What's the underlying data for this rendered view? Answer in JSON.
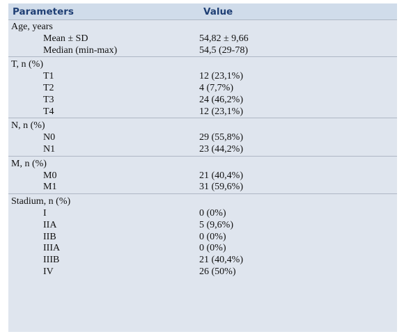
{
  "table": {
    "headers": {
      "parameter": "Parameters",
      "value": "Value"
    },
    "sections": [
      {
        "title": "Age, years",
        "rows": [
          {
            "label": "Mean ± SD",
            "value": "54,82 ± 9,66"
          },
          {
            "label": "Median (min-max)",
            "value": "54,5 (29-78)"
          }
        ]
      },
      {
        "title": "T, n (%)",
        "rows": [
          {
            "label": "T1",
            "value": "12 (23,1%)"
          },
          {
            "label": "T2",
            "value": "4 (7,7%)"
          },
          {
            "label": "T3",
            "value": "24 (46,2%)"
          },
          {
            "label": "T4",
            "value": "12 (23,1%)"
          }
        ]
      },
      {
        "title": "N, n (%)",
        "rows": [
          {
            "label": "N0",
            "value": "29 (55,8%)"
          },
          {
            "label": "N1",
            "value": "23 (44,2%)"
          }
        ]
      },
      {
        "title": "M, n (%)",
        "rows": [
          {
            "label": "M0",
            "value": "21 (40,4%)"
          },
          {
            "label": "M1",
            "value": "31 (59,6%)"
          }
        ]
      },
      {
        "title": "Stadium, n (%)",
        "rows": [
          {
            "label": "I",
            "value": "0 (0%)"
          },
          {
            "label": "IIA",
            "value": "5 (9,6%)"
          },
          {
            "label": "IIB",
            "value": "0 (0%)"
          },
          {
            "label": "IIIA",
            "value": "0 (0%)"
          },
          {
            "label": "IIIB",
            "value": "21 (40,4%)"
          },
          {
            "label": "IV",
            "value": "26 (50%)"
          }
        ]
      }
    ]
  }
}
